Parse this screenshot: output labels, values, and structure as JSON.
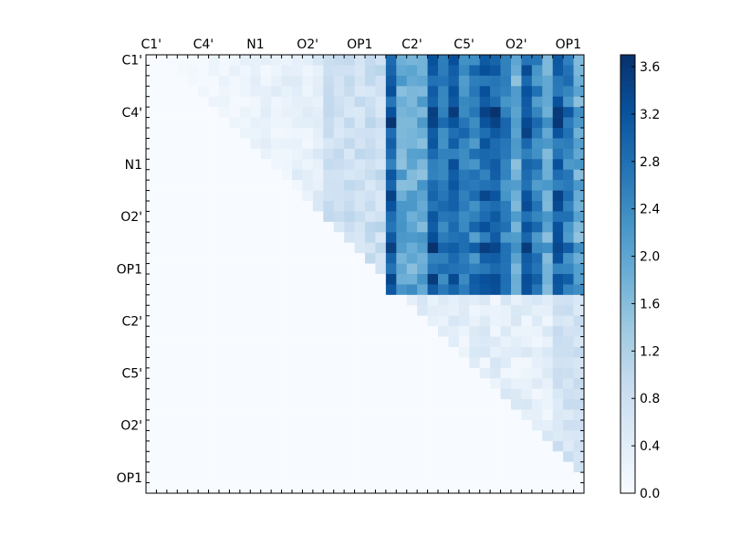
{
  "chart_data": {
    "type": "heatmap",
    "title": "",
    "xlabel": "",
    "ylabel": "",
    "n": 42,
    "x_tick_labels": [
      "C1'",
      "C4'",
      "N1",
      "O2'",
      "OP1",
      "C2'",
      "C5'",
      "O2'",
      "OP1"
    ],
    "y_tick_labels": [
      "C1'",
      "C4'",
      "N1",
      "O2'",
      "OP1",
      "C2'",
      "C5'",
      "O2'",
      "OP1"
    ],
    "tick_step": 5,
    "colorbar": {
      "min": 0.0,
      "max": 3.7,
      "ticks": [
        "0.0",
        "0.4",
        "0.8",
        "1.2",
        "1.6",
        "2.0",
        "2.4",
        "2.8",
        "3.2",
        "3.6"
      ],
      "colormap": "Blues",
      "colors": [
        "#f7fbff",
        "#deebf7",
        "#c6dbef",
        "#9ecae1",
        "#6baed6",
        "#4292c6",
        "#2171b5",
        "#08519c",
        "#08306b"
      ]
    },
    "blocks": {
      "upper_left_triangle_range": [
        0.0,
        1.2
      ],
      "upper_right_block_range": [
        0.6,
        3.7
      ],
      "lower_right_triangle_range": [
        0.0,
        1.0
      ],
      "lower_left": 0.0
    }
  }
}
